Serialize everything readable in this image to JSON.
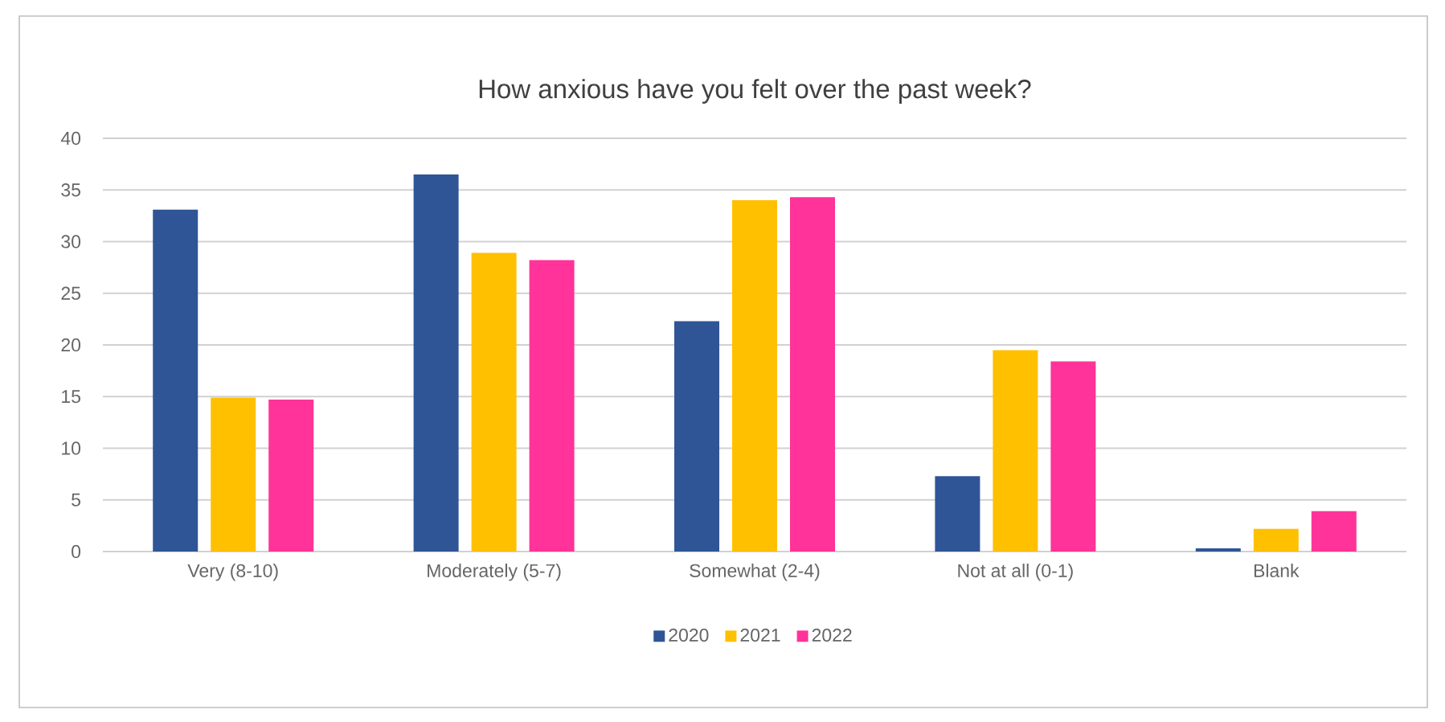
{
  "chart_data": {
    "type": "bar",
    "title": "How anxious have you felt over the past week?",
    "categories": [
      "Very (8-10)",
      "Moderately (5-7)",
      "Somewhat (2-4)",
      "Not at all (0-1)",
      "Blank"
    ],
    "series": [
      {
        "name": "2020",
        "color": "#2f5597",
        "values": [
          33.1,
          36.5,
          22.3,
          7.3,
          0.3
        ]
      },
      {
        "name": "2021",
        "color": "#ffc000",
        "values": [
          14.9,
          28.9,
          34.0,
          19.5,
          2.2
        ]
      },
      {
        "name": "2022",
        "color": "#ff3399",
        "values": [
          14.7,
          28.2,
          34.3,
          18.4,
          3.9
        ]
      }
    ],
    "ylim": [
      0,
      40
    ],
    "yticks": [
      0,
      5,
      10,
      15,
      20,
      25,
      30,
      35,
      40
    ],
    "grid": "y",
    "legend": "bottom"
  }
}
